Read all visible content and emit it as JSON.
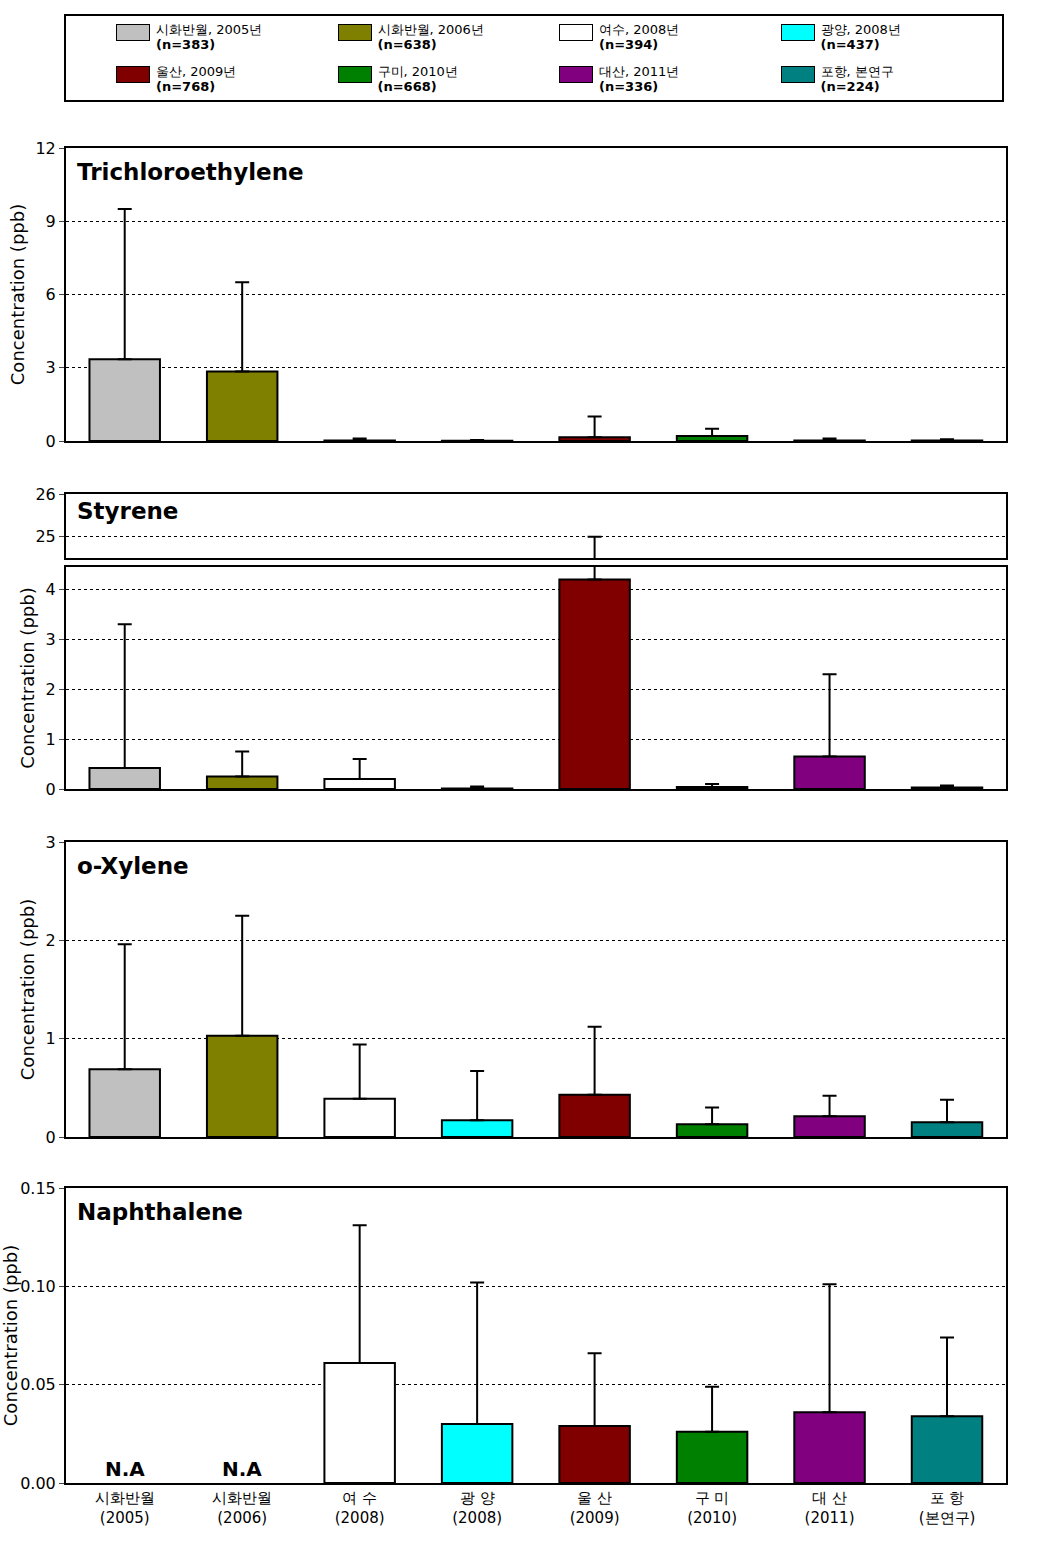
{
  "legend_entries": [
    {
      "name": "시화반월, 2005년",
      "n": "(n=383)",
      "color": "#c0c0c0"
    },
    {
      "name": "시화반월, 2006년",
      "n": "(n=638)",
      "color": "#808000"
    },
    {
      "name": "여수, 2008년",
      "n": "(n=394)",
      "color": "#ffffff"
    },
    {
      "name": "광양, 2008년",
      "n": "(n=437)",
      "color": "#00ffff"
    },
    {
      "name": "울산, 2009년",
      "n": "(n=768)",
      "color": "#800000"
    },
    {
      "name": "구미, 2010년",
      "n": "(n=668)",
      "color": "#008000"
    },
    {
      "name": "대산, 2011년",
      "n": "(n=336)",
      "color": "#800080"
    },
    {
      "name": "포항, 본연구",
      "n": "(n=224)",
      "color": "#008080"
    }
  ],
  "chart_data": [
    {
      "type": "bar",
      "title": "Trichloroethylene",
      "ylabel": "Concentration (ppb)",
      "categories": [
        "시화반월\n(2005)",
        "시화반월\n(2006)",
        "여 수\n(2008)",
        "광 양\n(2008)",
        "울 산\n(2009)",
        "구 미\n(2010)",
        "대 산\n(2011)",
        "포 항\n(본연구)"
      ],
      "values": [
        3.35,
        2.85,
        0.02,
        0.01,
        0.15,
        0.2,
        0.02,
        0.02
      ],
      "errors": [
        6.15,
        3.65,
        0.08,
        0.03,
        0.85,
        0.3,
        0.08,
        0.05
      ],
      "colors": [
        "#c0c0c0",
        "#808000",
        "#ffffff",
        "#00ffff",
        "#800000",
        "#008000",
        "#800080",
        "#008080"
      ],
      "ylim": [
        0,
        12
      ],
      "yticks": [
        0,
        3,
        6,
        9,
        12
      ],
      "grid": true,
      "tick_labels": "y"
    },
    {
      "type": "bar",
      "title": "Styrene",
      "ylabel": "Concentration (ppb)",
      "categories": [
        "시화반월\n(2005)",
        "시화반월\n(2006)",
        "여 수\n(2008)",
        "광 양\n(2008)",
        "울 산\n(2009)",
        "구 미\n(2010)",
        "대 산\n(2011)",
        "포 항\n(본연구)"
      ],
      "values": [
        0.42,
        0.25,
        0.2,
        0.01,
        4.2,
        0.04,
        0.65,
        0.03
      ],
      "errors": [
        2.88,
        0.5,
        0.4,
        0.04,
        20.8,
        0.06,
        1.65,
        0.04
      ],
      "colors": [
        "#c0c0c0",
        "#808000",
        "#ffffff",
        "#00ffff",
        "#800000",
        "#008000",
        "#800080",
        "#008080"
      ],
      "ylim": [
        0,
        4.45
      ],
      "yticks": [
        0,
        1,
        2,
        3,
        4
      ],
      "ylim_upper": [
        24.5,
        26
      ],
      "yticks_upper": [
        25,
        26
      ],
      "grid": true,
      "tick_labels": "y"
    },
    {
      "type": "bar",
      "title": "o-Xylene",
      "ylabel": "Concentration (ppb)",
      "categories": [
        "시화반월\n(2005)",
        "시화반월\n(2006)",
        "여 수\n(2008)",
        "광 양\n(2008)",
        "울 산\n(2009)",
        "구 미\n(2010)",
        "대 산\n(2011)",
        "포 항\n(본연구)"
      ],
      "values": [
        0.69,
        1.03,
        0.39,
        0.17,
        0.43,
        0.13,
        0.21,
        0.15
      ],
      "errors": [
        1.27,
        1.22,
        0.55,
        0.5,
        0.69,
        0.17,
        0.21,
        0.23
      ],
      "colors": [
        "#c0c0c0",
        "#808000",
        "#ffffff",
        "#00ffff",
        "#800000",
        "#008000",
        "#800080",
        "#008080"
      ],
      "ylim": [
        0,
        3
      ],
      "yticks": [
        0,
        1,
        2,
        3
      ],
      "grid": true,
      "tick_labels": "y"
    },
    {
      "type": "bar",
      "title": "Naphthalene",
      "ylabel": "Concentration (ppb)",
      "categories": [
        "시화반월\n(2005)",
        "시화반월\n(2006)",
        "여 수\n(2008)",
        "광 양\n(2008)",
        "울 산\n(2009)",
        "구 미\n(2010)",
        "대 산\n(2011)",
        "포 항\n(본연구)"
      ],
      "values": [
        null,
        null,
        0.061,
        0.03,
        0.029,
        0.026,
        0.036,
        0.034
      ],
      "errors": [
        null,
        null,
        0.07,
        0.072,
        0.037,
        0.023,
        0.065,
        0.04
      ],
      "colors": [
        "#c0c0c0",
        "#808000",
        "#ffffff",
        "#00ffff",
        "#800000",
        "#008000",
        "#800080",
        "#008080"
      ],
      "annotations": [
        {
          "x": "시화반월\n(2005)",
          "text": "N.A"
        },
        {
          "x": "시화반월\n(2006)",
          "text": "N.A"
        }
      ],
      "ylim": [
        0,
        0.15
      ],
      "yticks": [
        {
          "value": 0,
          "label": "0.00"
        },
        {
          "value": 0.05,
          "label": "0.05"
        },
        {
          "value": 0.1,
          "label": "0.10"
        },
        {
          "value": 0.15,
          "label": "0.15"
        }
      ],
      "grid": true
    }
  ]
}
